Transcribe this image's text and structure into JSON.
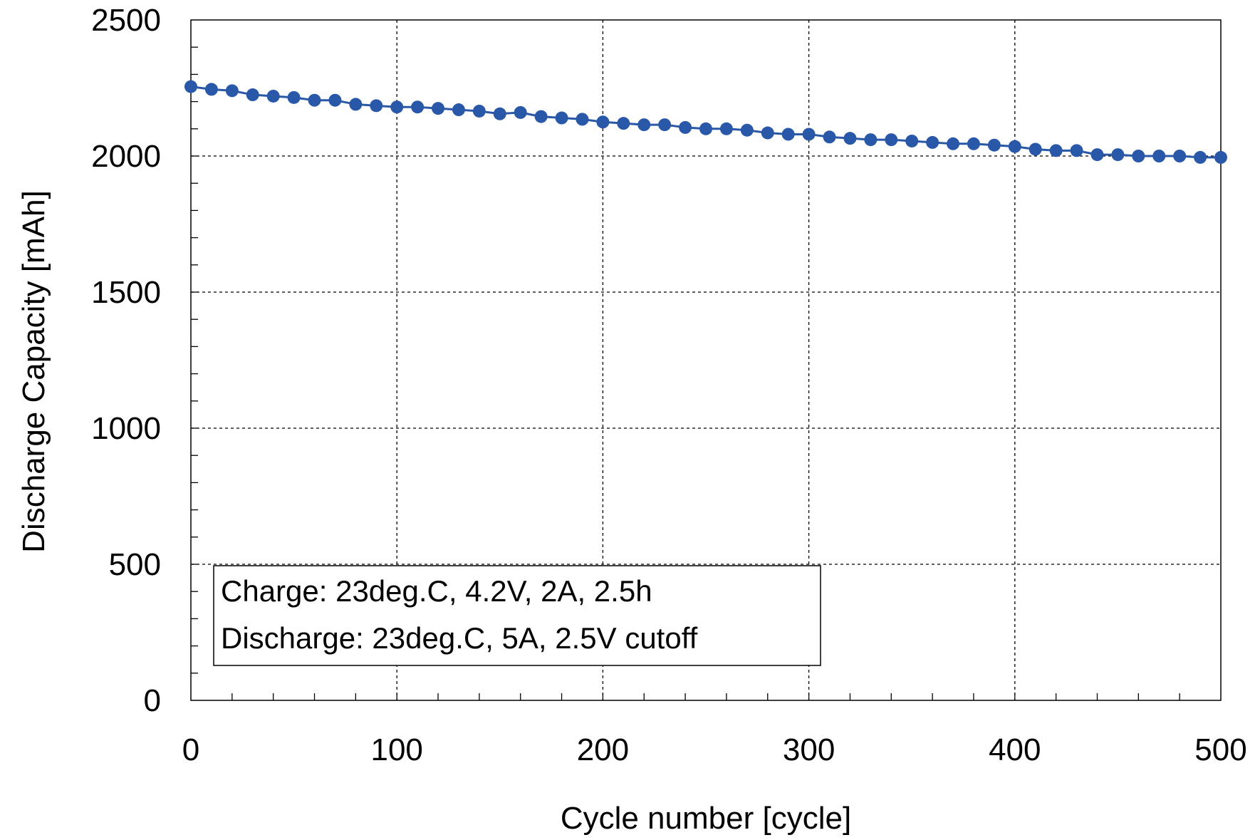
{
  "chart_data": {
    "type": "line",
    "xlabel": "Cycle number [cycle]",
    "ylabel": "Discharge Capacity [mAh]",
    "xlim": [
      0,
      500
    ],
    "ylim": [
      0,
      2500
    ],
    "x_ticks": [
      0,
      100,
      200,
      300,
      400,
      500
    ],
    "y_ticks": [
      0,
      500,
      1000,
      1500,
      2000,
      2500
    ],
    "grid": true,
    "annotation": [
      "Charge: 23deg.C, 4.2V, 2A, 2.5h",
      "Discharge: 23deg.C, 5A, 2.5V cutoff"
    ],
    "series": [
      {
        "color": "#2a58a8",
        "x": [
          0,
          10,
          20,
          30,
          40,
          50,
          60,
          70,
          80,
          90,
          100,
          110,
          120,
          130,
          140,
          150,
          160,
          170,
          180,
          190,
          200,
          210,
          220,
          230,
          240,
          250,
          260,
          270,
          280,
          290,
          300,
          310,
          320,
          330,
          340,
          350,
          360,
          370,
          380,
          390,
          400,
          410,
          420,
          430,
          440,
          450,
          460,
          470,
          480,
          490,
          500
        ],
        "y": [
          2255,
          2245,
          2240,
          2225,
          2220,
          2215,
          2205,
          2205,
          2190,
          2185,
          2180,
          2180,
          2175,
          2170,
          2165,
          2155,
          2160,
          2145,
          2140,
          2135,
          2125,
          2120,
          2115,
          2115,
          2105,
          2100,
          2100,
          2095,
          2085,
          2080,
          2080,
          2070,
          2065,
          2060,
          2060,
          2055,
          2050,
          2045,
          2045,
          2040,
          2035,
          2025,
          2020,
          2020,
          2005,
          2005,
          2000,
          2000,
          2000,
          1995,
          1995
        ]
      }
    ]
  }
}
